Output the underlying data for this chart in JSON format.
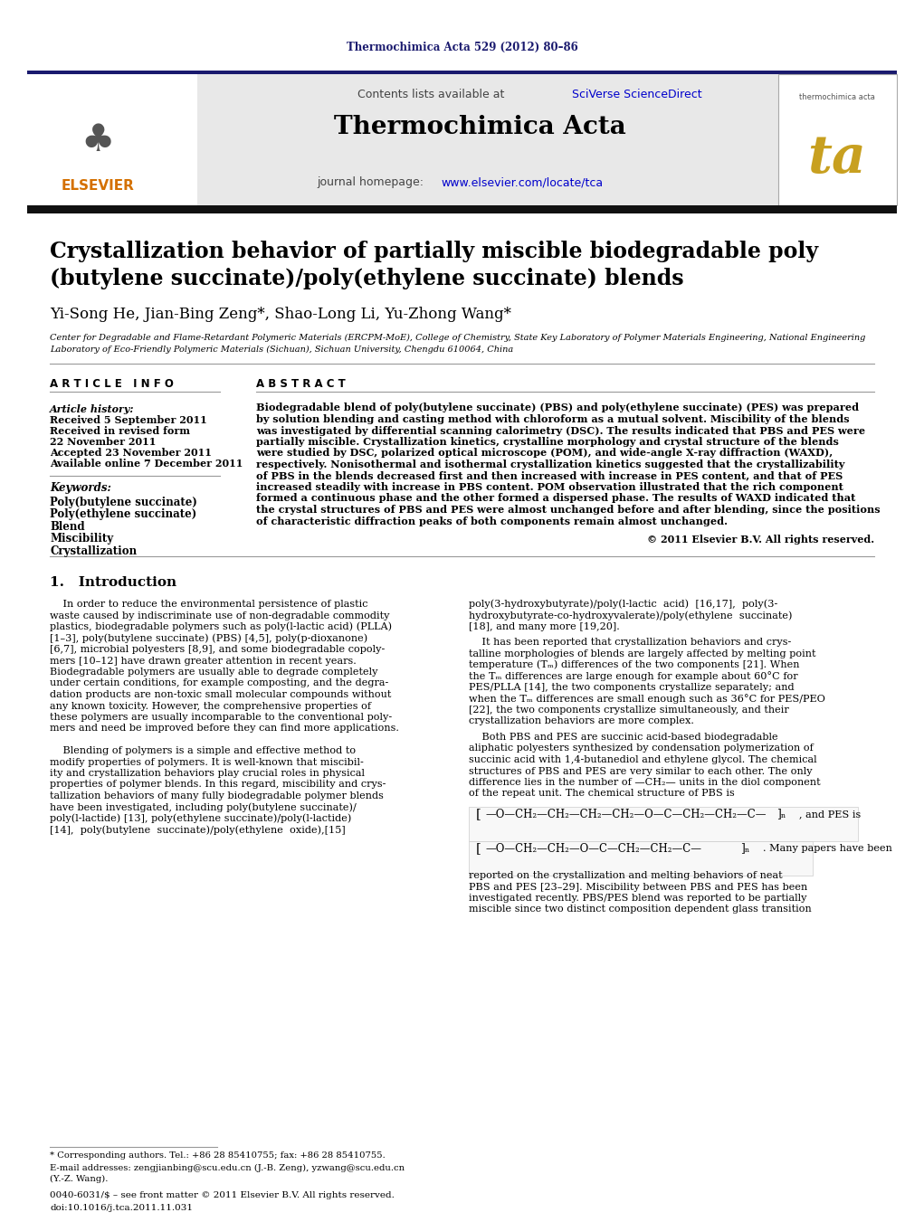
{
  "journal_ref": "Thermochimica Acta 529 (2012) 80–86",
  "journal_name": "Thermochimica Acta",
  "contents_line": "Contents lists available at SciVerse ScienceDirect",
  "paper_title_line1": "Crystallization behavior of partially miscible biodegradable poly",
  "paper_title_line2": "(butylene succinate)/poly(ethylene succinate) blends",
  "authors": "Yi-Song He, Jian-Bing Zeng*, Shao-Long Li, Yu-Zhong Wang*",
  "article_info_header": "A R T I C L E   I N F O",
  "abstract_header": "A B S T R A C T",
  "article_history_label": "Article history:",
  "received1": "Received 5 September 2011",
  "received2": "Received in revised form",
  "received2b": "22 November 2011",
  "accepted": "Accepted 23 November 2011",
  "available": "Available online 7 December 2011",
  "keywords_label": "Keywords:",
  "keyword1": "Poly(butylene succinate)",
  "keyword2": "Poly(ethylene succinate)",
  "keyword3": "Blend",
  "keyword4": "Miscibility",
  "keyword5": "Crystallization",
  "copyright": "© 2011 Elsevier B.V. All rights reserved.",
  "intro_header": "1.   Introduction",
  "footnote_star": "* Corresponding authors. Tel.: +86 28 85410755; fax: +86 28 85410755.",
  "footnote_email": "E-mail addresses: zengjianbing@scu.edu.cn (J.-B. Zeng), yzwang@scu.edu.cn",
  "footnote_email2": "(Y.-Z. Wang).",
  "footer_issn": "0040-6031/$ – see front matter © 2011 Elsevier B.V. All rights reserved.",
  "footer_doi": "doi:10.1016/j.tca.2011.11.031",
  "bg_color": "#ffffff",
  "link_color": "#0000cc",
  "text_color": "#000000"
}
